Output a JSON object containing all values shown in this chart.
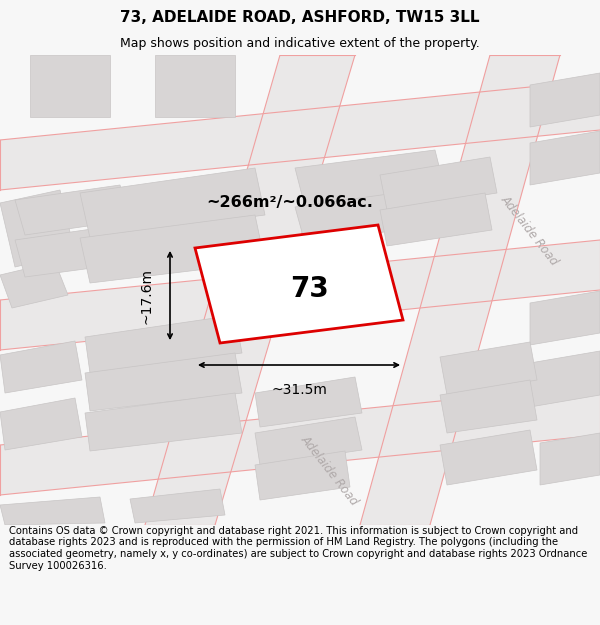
{
  "title": "73, ADELAIDE ROAD, ASHFORD, TW15 3LL",
  "subtitle": "Map shows position and indicative extent of the property.",
  "footer": "Contains OS data © Crown copyright and database right 2021. This information is subject to Crown copyright and database rights 2023 and is reproduced with the permission of HM Land Registry. The polygons (including the associated geometry, namely x, y co-ordinates) are subject to Crown copyright and database rights 2023 Ordnance Survey 100026316.",
  "area_label": "~266m²/~0.066ac.",
  "house_number": "73",
  "width_label": "~31.5m",
  "height_label": "~17.6m",
  "road_label": "Adelaide Road",
  "bg_color": "#f7f7f7",
  "map_bg": "#f0eeee",
  "road_fill": "#eae8e8",
  "building_fill": "#d8d5d5",
  "plot_outline_color": "#dd0000",
  "road_line_color": "#f0a0a0",
  "title_fontsize": 11,
  "subtitle_fontsize": 9,
  "footer_fontsize": 7.2
}
